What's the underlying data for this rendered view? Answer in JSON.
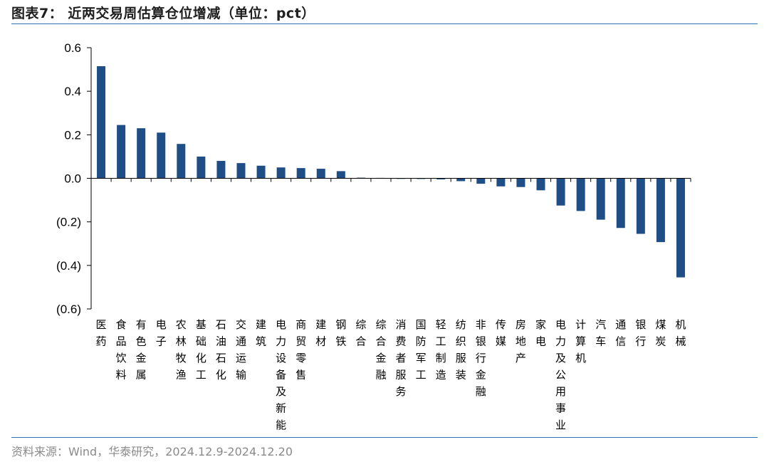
{
  "figure": {
    "title": "图表7：  近两交易周估算仓位增减（单位：pct）",
    "source": "资料来源：Wind，华泰研究，2024.12.9-2024.12.20"
  },
  "chart_data": {
    "type": "bar",
    "title": "近两交易周估算仓位增减（单位：pct）",
    "xlabel": "",
    "ylabel": "",
    "ylim": [
      -0.6,
      0.6
    ],
    "yticks": [
      0.6,
      0.4,
      0.2,
      0.0,
      -0.2,
      -0.4,
      -0.6
    ],
    "ytick_labels": [
      "0.6",
      "0.4",
      "0.2",
      "0.0",
      "(0.2)",
      "(0.4)",
      "(0.6)"
    ],
    "grid": false,
    "bar_color": "#1f4e86",
    "categories": [
      "医药",
      "食品饮料",
      "有色金属",
      "电子",
      "农林牧渔",
      "基础化工",
      "石油石化",
      "交通运输",
      "建筑",
      "电力设备及新能源",
      "商贸零售",
      "建材",
      "钢铁",
      "综合",
      "综合金融",
      "消费者服务",
      "国防军工",
      "轻工制造",
      "纺织服装",
      "非银行金融",
      "传媒",
      "房地产",
      "家电",
      "电力及公用事业",
      "计算机",
      "汽车",
      "通信",
      "银行",
      "煤炭",
      "机械"
    ],
    "values": [
      0.515,
      0.245,
      0.23,
      0.21,
      0.158,
      0.1,
      0.08,
      0.07,
      0.058,
      0.05,
      0.047,
      0.044,
      0.033,
      0.003,
      0.002,
      -0.002,
      -0.003,
      -0.005,
      -0.013,
      -0.025,
      -0.037,
      -0.04,
      -0.055,
      -0.125,
      -0.15,
      -0.19,
      -0.228,
      -0.255,
      -0.293,
      -0.455
    ]
  }
}
